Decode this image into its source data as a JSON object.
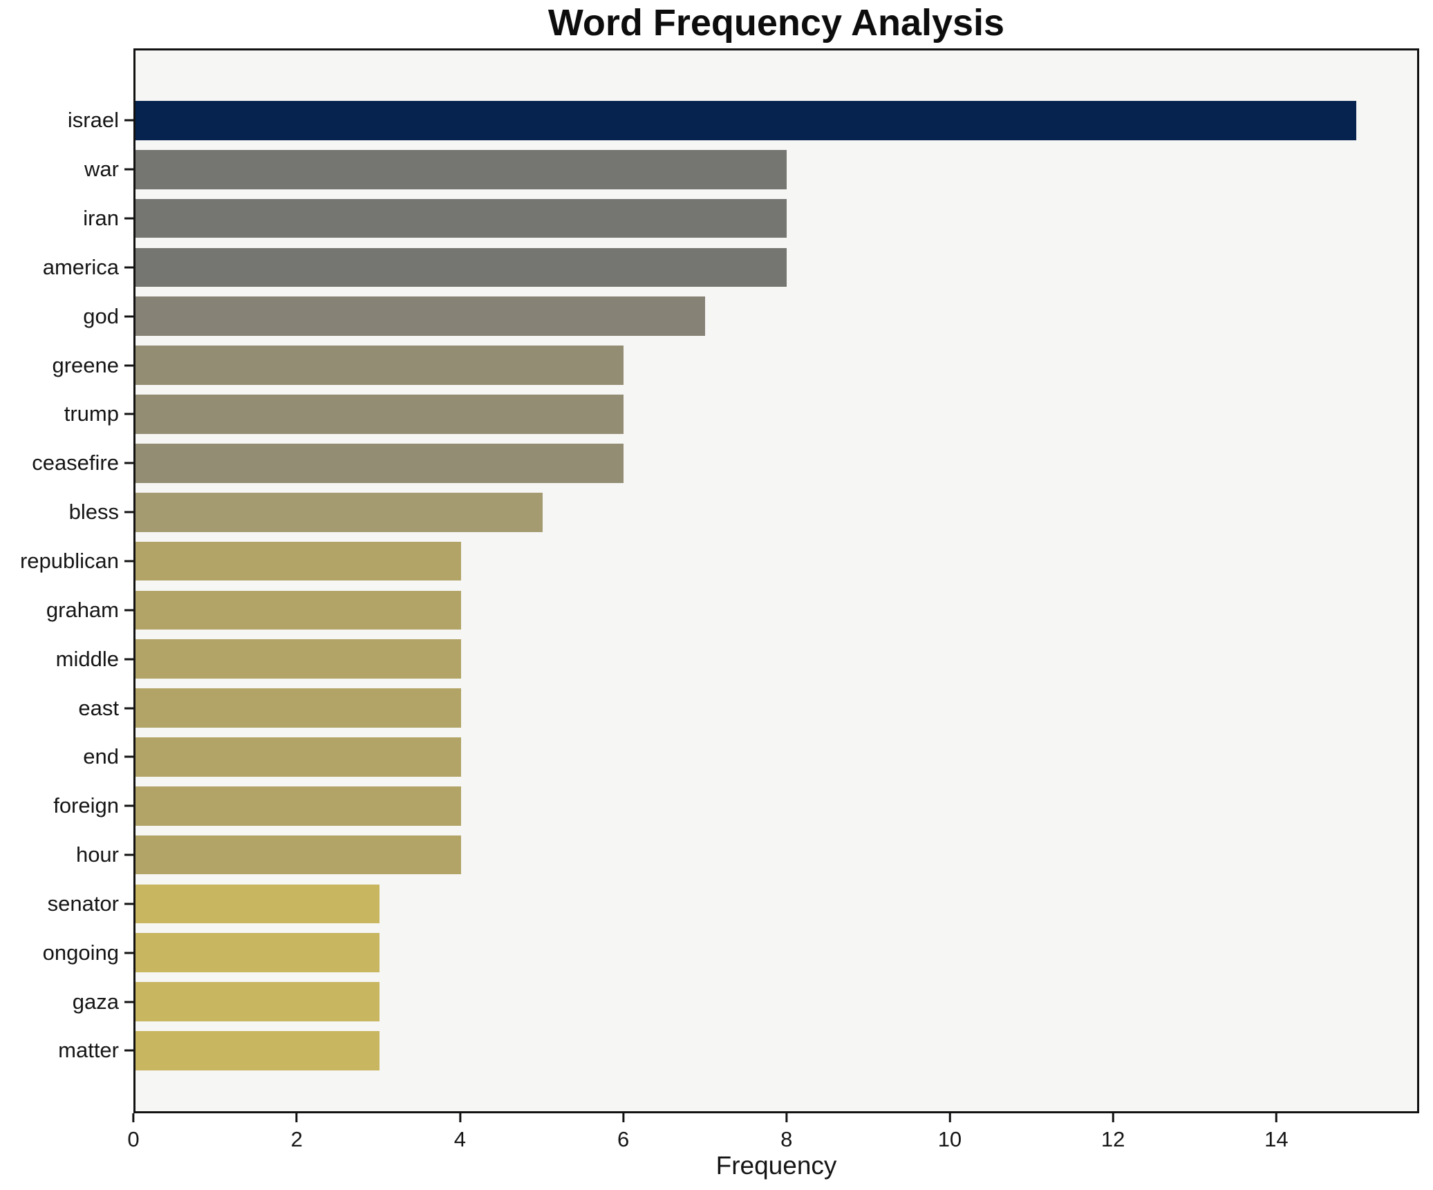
{
  "title": "Word Frequency Analysis",
  "chart_data": {
    "type": "bar",
    "orientation": "horizontal",
    "title": "Word Frequency Analysis",
    "xlabel": "Frequency",
    "ylabel": "",
    "categories": [
      "israel",
      "war",
      "iran",
      "america",
      "god",
      "greene",
      "trump",
      "ceasefire",
      "bless",
      "republican",
      "graham",
      "middle",
      "east",
      "end",
      "foreign",
      "hour",
      "senator",
      "ongoing",
      "gaza",
      "matter"
    ],
    "values": [
      15,
      8,
      8,
      8,
      7,
      6,
      6,
      6,
      5,
      4,
      4,
      4,
      4,
      4,
      4,
      4,
      3,
      3,
      3,
      3
    ],
    "bar_colors": [
      "#05234e",
      "#757571",
      "#757571",
      "#757571",
      "#868276",
      "#938d73",
      "#938d73",
      "#938d73",
      "#a59b71",
      "#b2a466",
      "#b2a466",
      "#b2a466",
      "#b2a466",
      "#b2a466",
      "#b2a466",
      "#b2a466",
      "#c8b660",
      "#c8b660",
      "#c8b660",
      "#c8b660"
    ],
    "xlim": [
      0,
      15.75
    ],
    "xticks": [
      0,
      2,
      4,
      6,
      8,
      10,
      12,
      14
    ],
    "grid": false,
    "legend": null,
    "plot_background": "#f6f6f5",
    "figure_background": "#ffffff",
    "spine_color": "#121212",
    "text_color": "#151515"
  }
}
